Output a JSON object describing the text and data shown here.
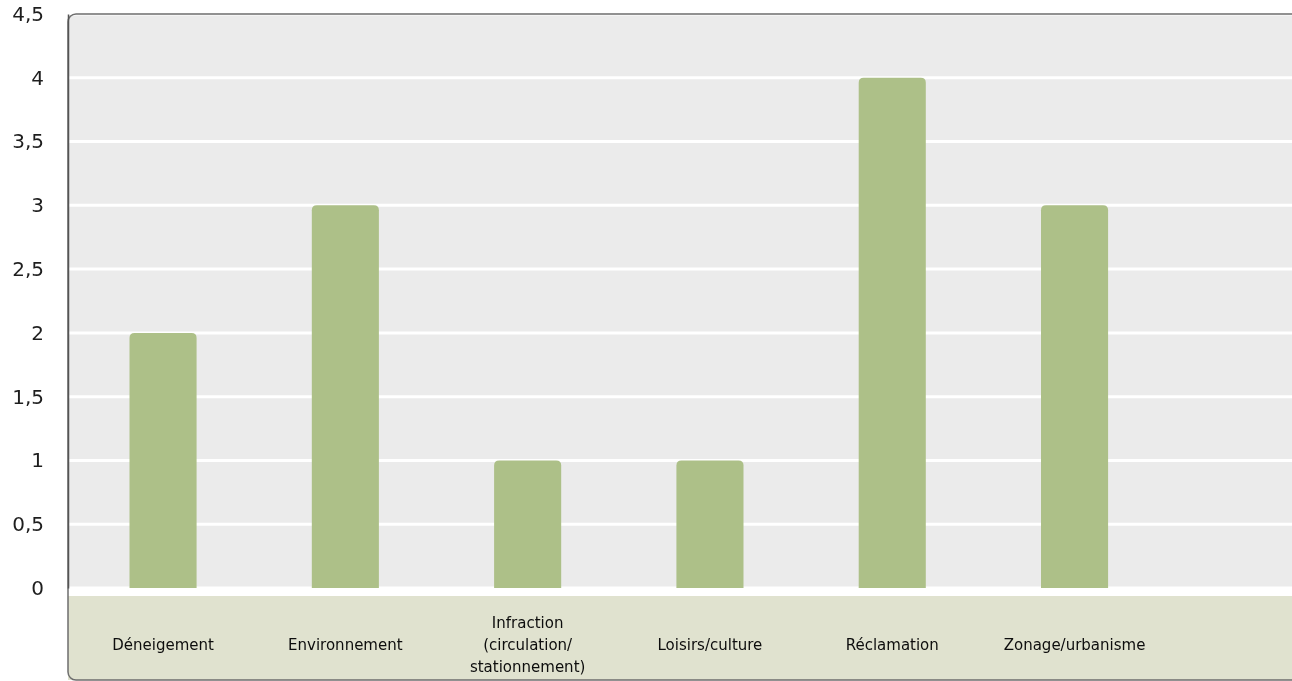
{
  "chart_data": {
    "type": "bar",
    "categories": [
      "Déneigement",
      "Environnement",
      "Infraction (circulation/ stationnement)",
      "Loisirs/culture",
      "Réclamation",
      "Zonage/urbanisme"
    ],
    "values": [
      2,
      3,
      1,
      1,
      4,
      3
    ],
    "color": "#adc088",
    "ylim": [
      0,
      4.5
    ],
    "yticks": [
      0,
      {
        "value": 0.5,
        "label": "0,5"
      },
      1,
      {
        "value": 1.5,
        "label": "1,5"
      },
      2,
      {
        "value": 2.5,
        "label": "2,5"
      },
      3,
      {
        "value": 3.5,
        "label": "3,5"
      },
      4,
      {
        "value": 4.5,
        "label": "4,5"
      }
    ],
    "grid": "y"
  }
}
